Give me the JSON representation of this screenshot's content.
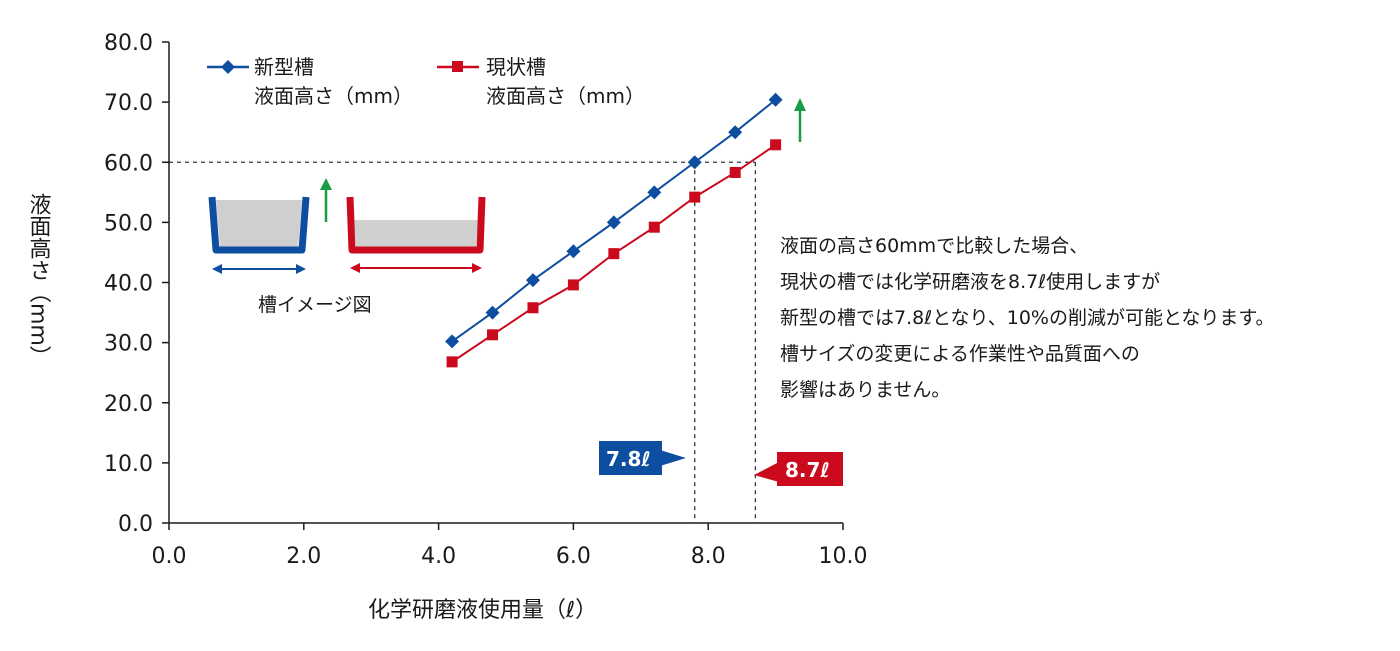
{
  "chart_data": {
    "type": "line",
    "title": "",
    "xlabel": "化学研磨液使用量（ℓ）",
    "ylabel": "液面高さ（mm）",
    "xlim": [
      0,
      10
    ],
    "ylim": [
      0,
      80
    ],
    "x_ticks": [
      "0.0",
      "2.0",
      "4.0",
      "6.0",
      "8.0",
      "10.0"
    ],
    "y_ticks": [
      "0.0",
      "10.0",
      "20.0",
      "30.0",
      "40.0",
      "50.0",
      "60.0",
      "70.0",
      "80.0"
    ],
    "legend_position": "top-left",
    "series": [
      {
        "name_line1": "新型槽",
        "name_line2": "液面高さ（mm）",
        "color": "#0d4ea0",
        "marker": "diamond",
        "x": [
          4.2,
          4.8,
          5.4,
          6.0,
          6.6,
          7.2,
          7.8,
          8.4,
          9.0
        ],
        "y": [
          30.2,
          35.0,
          40.4,
          45.2,
          50.0,
          55.0,
          60.0,
          65.0,
          70.4
        ]
      },
      {
        "name_line1": "現状槽",
        "name_line2": "液面高さ（mm）",
        "color": "#cc0a1e",
        "marker": "square",
        "x": [
          4.2,
          4.8,
          5.4,
          6.0,
          6.6,
          7.2,
          7.8,
          8.4,
          9.0
        ],
        "y": [
          26.8,
          31.3,
          35.8,
          39.6,
          44.8,
          49.2,
          54.2,
          58.3,
          62.9
        ]
      }
    ],
    "reference": {
      "y": 60.0,
      "x_new": 7.8,
      "x_current": 8.7
    },
    "callouts": [
      {
        "label": "7.8ℓ",
        "color": "#0d4ea0"
      },
      {
        "label": "8.7ℓ",
        "color": "#cc0a1e"
      }
    ]
  },
  "illustration": {
    "label": "槽イメージ図",
    "new_tank_color": "#0d4ea0",
    "current_tank_color": "#cc0a1e",
    "arrow_color": "#1a9b46"
  },
  "note": {
    "lines": [
      "液面の高さ60mmで比較した場合、",
      "現状の槽では化学研磨液を8.7ℓ使用しますが",
      "新型の槽では7.8ℓとなり、10%の削減が可能となります。",
      "槽サイズの変更による作業性や品質面への",
      "影響はありません。"
    ]
  }
}
